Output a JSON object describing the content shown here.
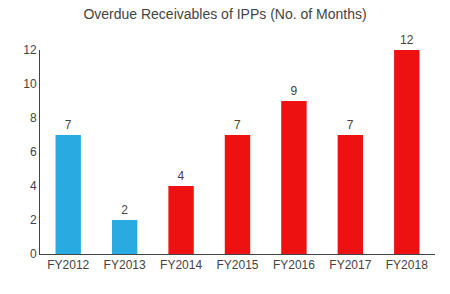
{
  "chart_data": {
    "type": "bar",
    "title": "Overdue Receivables of IPPs (No. of Months)",
    "categories": [
      "FY2012",
      "FY2013",
      "FY2014",
      "FY2015",
      "FY2016",
      "FY2017",
      "FY2018"
    ],
    "values": [
      7,
      2,
      4,
      7,
      9,
      7,
      12
    ],
    "colors": [
      "#29ABE2",
      "#29ABE2",
      "#EE1111",
      "#EE1111",
      "#EE1111",
      "#EE1111",
      "#EE1111"
    ],
    "ylim": [
      0,
      12
    ],
    "yticks": [
      0,
      2,
      4,
      6,
      8,
      10,
      12
    ],
    "grid": false,
    "data_labels": true
  }
}
